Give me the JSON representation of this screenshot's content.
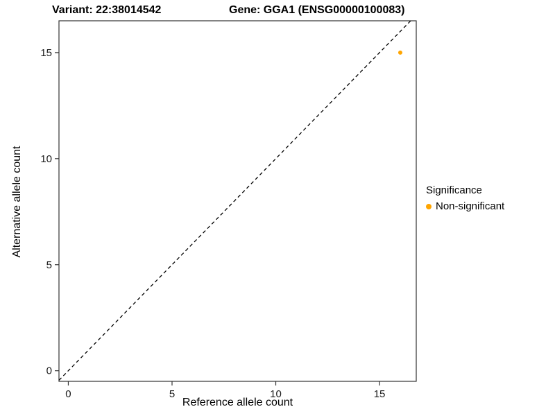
{
  "chart_data": {
    "type": "scatter",
    "title_left": "Variant: 22:38014542",
    "title_right": "Gene: GGA1 (ENSG00000100083)",
    "xlabel": "Reference allele count",
    "ylabel": "Alternative allele count",
    "xlim": [
      -0.45,
      16.77
    ],
    "ylim": [
      -0.5,
      16.5
    ],
    "xticks": [
      0,
      5,
      10,
      15
    ],
    "yticks": [
      0,
      5,
      10,
      15
    ],
    "grid": false,
    "panel_border_color": "#333333",
    "identity_line": {
      "style": "dashed",
      "color": "#000000",
      "note": "y = x"
    },
    "points": [
      {
        "x": 16,
        "y": 15,
        "series": "Non-significant"
      }
    ],
    "legend": {
      "title": "Significance",
      "position": "right",
      "entries": [
        {
          "label": "Non-significant",
          "color": "#FFA500"
        }
      ]
    }
  }
}
